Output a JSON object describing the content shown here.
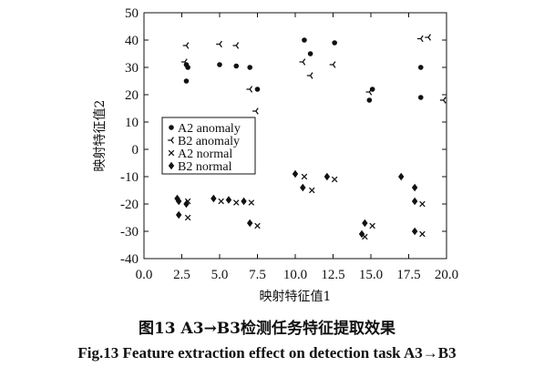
{
  "chart_data": {
    "type": "scatter",
    "xlabel": "映射特征值1",
    "ylabel": "映射特征值2",
    "xlim": [
      0.0,
      20.0
    ],
    "ylim": [
      -40,
      50
    ],
    "xticks": [
      0.0,
      2.5,
      5.0,
      7.5,
      10.0,
      12.5,
      15.0,
      17.5,
      20.0
    ],
    "xtick_labels": [
      "0.0",
      "2.5",
      "5.0",
      "7.5",
      "10.0",
      "12.5",
      "15.0",
      "17.5",
      "20.0"
    ],
    "yticks": [
      -40,
      -30,
      -20,
      -10,
      0,
      10,
      20,
      30,
      40,
      50
    ],
    "ytick_labels": [
      "-40",
      "-30",
      "-20",
      "-10",
      "0",
      "10",
      "20",
      "30",
      "40",
      "50"
    ],
    "legend_position": "center-left",
    "grid": false,
    "series": [
      {
        "name": "A2 anomaly",
        "marker": "dot",
        "points": [
          {
            "x": 2.8,
            "y": 31
          },
          {
            "x": 2.9,
            "y": 30
          },
          {
            "x": 2.8,
            "y": 25
          },
          {
            "x": 5.0,
            "y": 31
          },
          {
            "x": 6.1,
            "y": 30.5
          },
          {
            "x": 7.0,
            "y": 30
          },
          {
            "x": 7.5,
            "y": 22
          },
          {
            "x": 10.6,
            "y": 40
          },
          {
            "x": 11.0,
            "y": 35
          },
          {
            "x": 12.6,
            "y": 39
          },
          {
            "x": 14.9,
            "y": 18
          },
          {
            "x": 15.1,
            "y": 22
          },
          {
            "x": 18.3,
            "y": 30
          },
          {
            "x": 18.3,
            "y": 19
          }
        ]
      },
      {
        "name": "B2 anomaly",
        "marker": "tri",
        "points": [
          {
            "x": 2.8,
            "y": 38
          },
          {
            "x": 2.7,
            "y": 32
          },
          {
            "x": 5.0,
            "y": 38.5
          },
          {
            "x": 6.1,
            "y": 38
          },
          {
            "x": 7.0,
            "y": 22
          },
          {
            "x": 7.4,
            "y": 14
          },
          {
            "x": 10.5,
            "y": 32
          },
          {
            "x": 11.0,
            "y": 27
          },
          {
            "x": 12.5,
            "y": 31
          },
          {
            "x": 14.9,
            "y": 21
          },
          {
            "x": 18.3,
            "y": 40.5
          },
          {
            "x": 18.8,
            "y": 41
          },
          {
            "x": 19.8,
            "y": 18
          }
        ]
      },
      {
        "name": "A2 normal",
        "marker": "x",
        "points": [
          {
            "x": 2.9,
            "y": -19
          },
          {
            "x": 2.9,
            "y": -25
          },
          {
            "x": 5.1,
            "y": -19
          },
          {
            "x": 6.1,
            "y": -19.5
          },
          {
            "x": 7.1,
            "y": -19.5
          },
          {
            "x": 7.5,
            "y": -28
          },
          {
            "x": 10.6,
            "y": -10
          },
          {
            "x": 11.1,
            "y": -15
          },
          {
            "x": 12.6,
            "y": -11
          },
          {
            "x": 14.6,
            "y": -32
          },
          {
            "x": 15.1,
            "y": -28
          },
          {
            "x": 18.4,
            "y": -20
          },
          {
            "x": 18.4,
            "y": -31
          }
        ]
      },
      {
        "name": "B2 normal",
        "marker": "diamond",
        "points": [
          {
            "x": 2.2,
            "y": -18
          },
          {
            "x": 2.3,
            "y": -19
          },
          {
            "x": 2.8,
            "y": -20
          },
          {
            "x": 2.3,
            "y": -24
          },
          {
            "x": 4.6,
            "y": -18
          },
          {
            "x": 5.6,
            "y": -18.5
          },
          {
            "x": 6.6,
            "y": -19
          },
          {
            "x": 7.0,
            "y": -27
          },
          {
            "x": 10.0,
            "y": -9
          },
          {
            "x": 10.5,
            "y": -14
          },
          {
            "x": 12.1,
            "y": -10
          },
          {
            "x": 14.4,
            "y": -31
          },
          {
            "x": 14.6,
            "y": -27
          },
          {
            "x": 17.0,
            "y": -10
          },
          {
            "x": 17.9,
            "y": -14
          },
          {
            "x": 17.9,
            "y": -19
          },
          {
            "x": 17.9,
            "y": -30
          }
        ]
      }
    ]
  },
  "caption": {
    "cn": "图13   A3→B3检测任务特征提取效果",
    "en": "Fig.13   Feature extraction effect on detection task A3→B3"
  }
}
